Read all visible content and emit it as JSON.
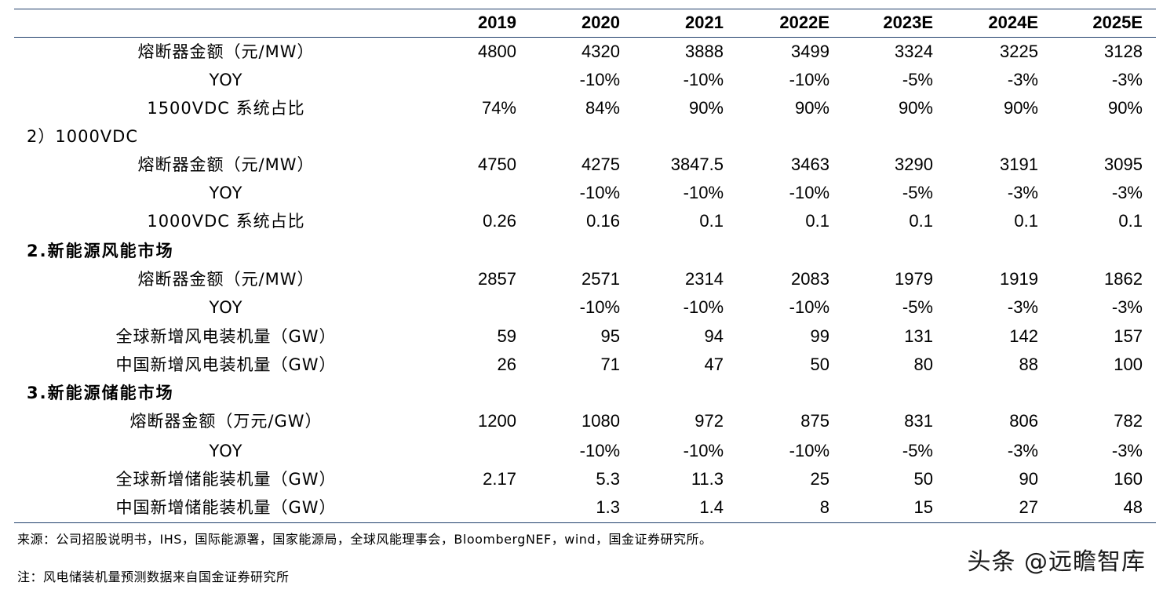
{
  "table": {
    "header": [
      "",
      "2019",
      "2020",
      "2021",
      "2022E",
      "2023E",
      "2024E",
      "2025E"
    ],
    "rows": [
      {
        "label": "熔断器金额（元/MW）",
        "type": "center",
        "values": [
          "4800",
          "4320",
          "3888",
          "3499",
          "3324",
          "3225",
          "3128"
        ]
      },
      {
        "label": "YOY",
        "type": "center",
        "values": [
          "",
          "-10%",
          "-10%",
          "-10%",
          "-5%",
          "-3%",
          "-3%"
        ]
      },
      {
        "label": "1500VDC 系统占比",
        "type": "center",
        "values": [
          "74%",
          "84%",
          "90%",
          "90%",
          "90%",
          "90%",
          "90%"
        ]
      },
      {
        "label": "2）1000VDC",
        "type": "plain",
        "values": [
          "",
          "",
          "",
          "",
          "",
          "",
          ""
        ]
      },
      {
        "label": "熔断器金额（元/MW）",
        "type": "center",
        "values": [
          "4750",
          "4275",
          "3847.5",
          "3463",
          "3290",
          "3191",
          "3095"
        ]
      },
      {
        "label": "YOY",
        "type": "center",
        "values": [
          "",
          "-10%",
          "-10%",
          "-10%",
          "-5%",
          "-3%",
          "-3%"
        ]
      },
      {
        "label": "1000VDC 系统占比",
        "type": "center",
        "values": [
          "0.26",
          "0.16",
          "0.1",
          "0.1",
          "0.1",
          "0.1",
          "0.1"
        ]
      },
      {
        "label": "2.新能源风能市场",
        "type": "section",
        "values": [
          "",
          "",
          "",
          "",
          "",
          "",
          ""
        ]
      },
      {
        "label": "熔断器金额（元/MW）",
        "type": "center",
        "values": [
          "2857",
          "2571",
          "2314",
          "2083",
          "1979",
          "1919",
          "1862"
        ]
      },
      {
        "label": "YOY",
        "type": "center",
        "values": [
          "",
          "-10%",
          "-10%",
          "-10%",
          "-5%",
          "-3%",
          "-3%"
        ]
      },
      {
        "label": "全球新增风电装机量（GW）",
        "type": "center",
        "values": [
          "59",
          "95",
          "94",
          "99",
          "131",
          "142",
          "157"
        ]
      },
      {
        "label": "中国新增风电装机量（GW）",
        "type": "center",
        "values": [
          "26",
          "71",
          "47",
          "50",
          "80",
          "88",
          "100"
        ]
      },
      {
        "label": "3.新能源储能市场",
        "type": "section",
        "values": [
          "",
          "",
          "",
          "",
          "",
          "",
          ""
        ]
      },
      {
        "label": "熔断器金额（万元/GW）",
        "type": "center",
        "values": [
          "1200",
          "1080",
          "972",
          "875",
          "831",
          "806",
          "782"
        ]
      },
      {
        "label": "YOY",
        "type": "center",
        "values": [
          "",
          "-10%",
          "-10%",
          "-10%",
          "-5%",
          "-3%",
          "-3%"
        ]
      },
      {
        "label": "全球新增储能装机量（GW）",
        "type": "center",
        "values": [
          "2.17",
          "5.3",
          "11.3",
          "25",
          "50",
          "90",
          "160"
        ]
      },
      {
        "label": "中国新增储能装机量（GW）",
        "type": "center",
        "values": [
          "",
          "1.3",
          "1.4",
          "8",
          "15",
          "27",
          "48"
        ]
      }
    ]
  },
  "footer": {
    "source": "来源：公司招股说明书，IHS，国际能源署，国家能源局，全球风能理事会，BloombergNEF，wind，国金证券研究所。",
    "note": "注：风电储装机量预测数据来自国金证券研究所"
  },
  "watermark": "头条 @远瞻智库"
}
